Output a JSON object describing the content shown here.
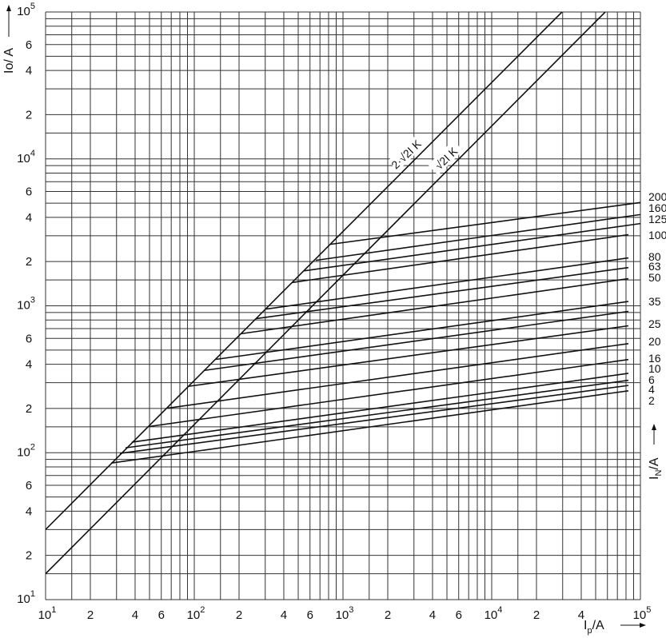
{
  "chart_data": {
    "type": "line",
    "title": "",
    "xlabel": {
      "main": "I",
      "sub": "p",
      "rest": "/A"
    },
    "ylabel": "Io/ A",
    "series_axis_label": {
      "main": "I",
      "sub": "N",
      "rest": "/A"
    },
    "xscale": "log",
    "yscale": "log",
    "xlim": [
      10,
      100000
    ],
    "ylim": [
      10,
      100000
    ],
    "grid": true,
    "grid_multipliers": [
      1,
      1.5,
      2,
      3,
      4,
      5,
      6,
      7,
      8,
      9
    ],
    "x_ticks": [
      {
        "base": "10",
        "exp": "1",
        "value": 10
      },
      {
        "base": "2",
        "exp": "",
        "value": 20
      },
      {
        "base": "4",
        "exp": "",
        "value": 40
      },
      {
        "base": "6",
        "exp": "",
        "value": 60
      },
      {
        "base": "10",
        "exp": "2",
        "value": 100
      },
      {
        "base": "2",
        "exp": "",
        "value": 200
      },
      {
        "base": "4",
        "exp": "",
        "value": 400
      },
      {
        "base": "6",
        "exp": "",
        "value": 600
      },
      {
        "base": "10",
        "exp": "3",
        "value": 1000
      },
      {
        "base": "2",
        "exp": "",
        "value": 2000
      },
      {
        "base": "4",
        "exp": "",
        "value": 4000
      },
      {
        "base": "6",
        "exp": "",
        "value": 6000
      },
      {
        "base": "10",
        "exp": "4",
        "value": 10000
      },
      {
        "base": "2",
        "exp": "",
        "value": 20000
      },
      {
        "base": "4",
        "exp": "",
        "value": 40000
      },
      {
        "base": "10",
        "exp": "5",
        "value": 100000
      }
    ],
    "y_ticks": [
      {
        "base": "10",
        "exp": "5",
        "value": 100000
      },
      {
        "base": "6",
        "exp": "",
        "value": 60000
      },
      {
        "base": "4",
        "exp": "",
        "value": 40000
      },
      {
        "base": "2",
        "exp": "",
        "value": 20000
      },
      {
        "base": "10",
        "exp": "4",
        "value": 10000
      },
      {
        "base": "6",
        "exp": "",
        "value": 6000
      },
      {
        "base": "4",
        "exp": "",
        "value": 4000
      },
      {
        "base": "2",
        "exp": "",
        "value": 2000
      },
      {
        "base": "10",
        "exp": "3",
        "value": 1000
      },
      {
        "base": "6",
        "exp": "",
        "value": 600
      },
      {
        "base": "4",
        "exp": "",
        "value": 400
      },
      {
        "base": "2",
        "exp": "",
        "value": 200
      },
      {
        "base": "10",
        "exp": "2",
        "value": 100
      },
      {
        "base": "6",
        "exp": "",
        "value": 60
      },
      {
        "base": "4",
        "exp": "",
        "value": 40
      },
      {
        "base": "2",
        "exp": "",
        "value": 20
      },
      {
        "base": "10",
        "exp": "1",
        "value": 10
      }
    ],
    "diagonals": [
      {
        "name": "2·√2I K",
        "points": [
          [
            10,
            30
          ],
          [
            29700,
            100000
          ]
        ]
      },
      {
        "name": "√2I K",
        "points": [
          [
            10,
            15
          ],
          [
            58000,
            100000
          ]
        ]
      }
    ],
    "series": [
      {
        "name": "200",
        "points": [
          [
            820,
            2620
          ],
          [
            100000,
            5050
          ]
        ]
      },
      {
        "name": "160",
        "points": [
          [
            656,
            2040
          ],
          [
            100000,
            4180
          ]
        ]
      },
      {
        "name": "125",
        "points": [
          [
            546,
            1730
          ],
          [
            100000,
            3630
          ]
        ]
      },
      {
        "name": "100",
        "points": [
          [
            453,
            1440
          ],
          [
            83000,
            3050
          ]
        ]
      },
      {
        "name": "80",
        "points": [
          [
            305,
            950
          ],
          [
            83000,
            2120
          ]
        ]
      },
      {
        "name": "63",
        "points": [
          [
            260,
            818
          ],
          [
            83000,
            1820
          ]
        ]
      },
      {
        "name": "50",
        "points": [
          [
            207,
            646
          ],
          [
            83000,
            1530
          ]
        ]
      },
      {
        "name": "35",
        "points": [
          [
            140,
            432
          ],
          [
            83000,
            1070
          ]
        ]
      },
      {
        "name": "",
        "points": [
          [
            116,
            363
          ],
          [
            83000,
            916
          ]
        ]
      },
      {
        "name": "25",
        "points": [
          [
            91,
            283
          ],
          [
            83000,
            731
          ]
        ]
      },
      {
        "name": "20",
        "points": [
          [
            66,
            201
          ],
          [
            83000,
            553
          ]
        ]
      },
      {
        "name": "16",
        "points": [
          [
            50,
            151
          ],
          [
            83000,
            431
          ]
        ]
      },
      {
        "name": "10",
        "points": [
          [
            38,
            118
          ],
          [
            83000,
            347
          ]
        ]
      },
      {
        "name": "6",
        "points": [
          [
            34.5,
            108
          ],
          [
            83000,
            311
          ]
        ]
      },
      {
        "name": "4",
        "points": [
          [
            31.6,
            99
          ],
          [
            83000,
            287
          ]
        ]
      },
      {
        "name": "2",
        "points": [
          [
            27.6,
            85
          ],
          [
            83000,
            264
          ]
        ]
      }
    ],
    "colors": {
      "line": "#111111",
      "grid": "#333333",
      "background": "#ffffff"
    }
  }
}
